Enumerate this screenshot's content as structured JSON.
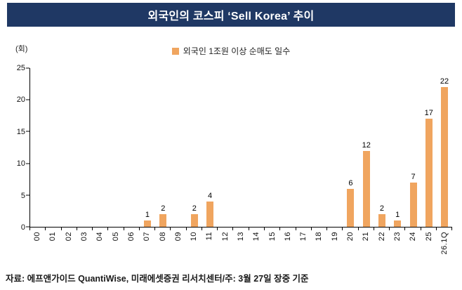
{
  "title": "외국인의 코스피 ‘Sell Korea’ 추이",
  "footer": "자료: 에프앤가이드 QuantiWise, 미래에셋증권 리서치센터/주: 3월 27일 장중 기준",
  "colors": {
    "title_bg": "#1F3864",
    "title_text": "#FFFFFF",
    "bar": "#F0A55F",
    "axis": "#000000"
  },
  "chart_data": {
    "type": "bar",
    "title": "외국인의 코스피 ‘Sell Korea’ 추이",
    "legend": "외국인 1조원 이상 순매도 일수",
    "unit_label": "(회)",
    "categories": [
      "00",
      "01",
      "02",
      "03",
      "04",
      "05",
      "06",
      "07",
      "08",
      "09",
      "10",
      "11",
      "12",
      "13",
      "14",
      "15",
      "16",
      "17",
      "18",
      "19",
      "20",
      "21",
      "22",
      "23",
      "24",
      "25",
      "26.1Q"
    ],
    "values": [
      0,
      0,
      0,
      0,
      0,
      0,
      0,
      1,
      2,
      0,
      2,
      4,
      0,
      0,
      0,
      0,
      0,
      0,
      0,
      0,
      6,
      12,
      2,
      1,
      7,
      17,
      22
    ],
    "xlabel": "",
    "ylabel": "(회)",
    "ylim": [
      0,
      25
    ],
    "yticks": [
      0,
      5,
      10,
      15,
      20,
      25
    ],
    "grid": false,
    "legend_position": "top-center",
    "data_labels": true
  }
}
